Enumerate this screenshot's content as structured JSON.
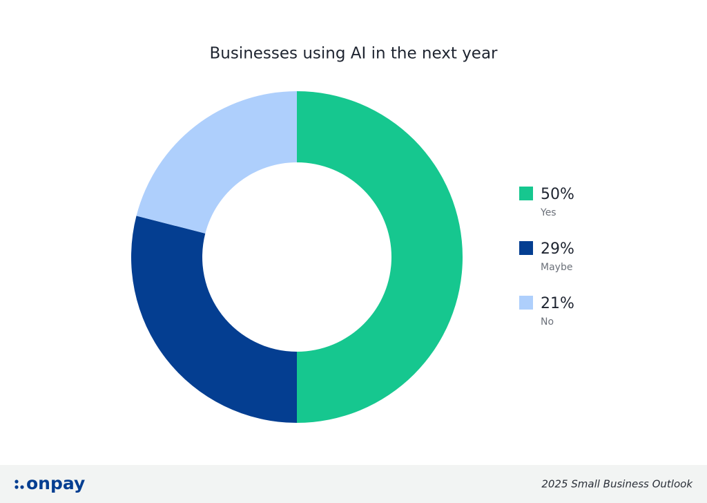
{
  "chart_data": {
    "type": "pie",
    "donut": true,
    "title": "Businesses using AI in the next year",
    "categories": [
      "Yes",
      "Maybe",
      "No"
    ],
    "values": [
      50,
      29,
      21
    ],
    "value_labels": [
      "50%",
      "29%",
      "21%"
    ],
    "colors": [
      "#16c78f",
      "#043e91",
      "#aecffc"
    ],
    "legend": "right"
  },
  "footer": {
    "logo": "onpay",
    "caption": "2025 Small Business Outlook"
  }
}
